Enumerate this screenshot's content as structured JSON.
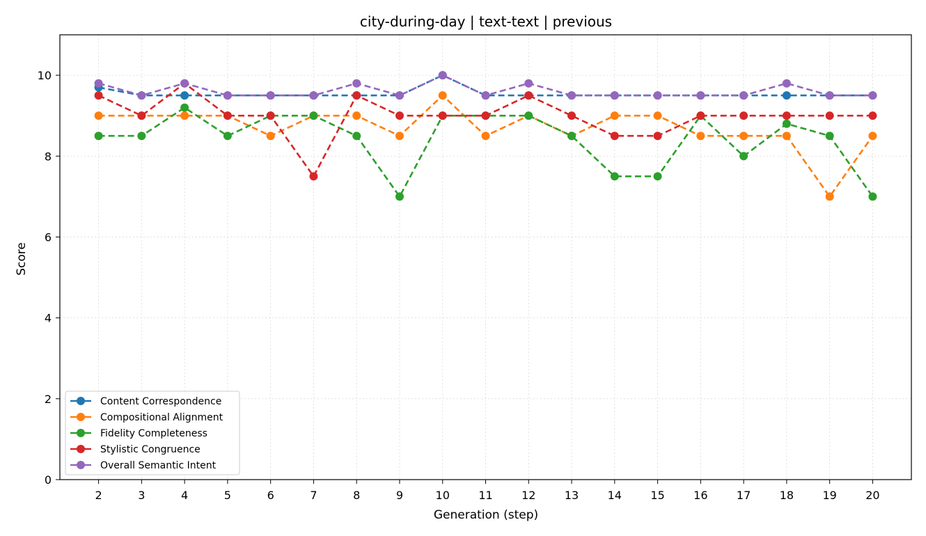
{
  "chart_data": {
    "type": "line",
    "title": "city-during-day | text-text | previous",
    "xlabel": "Generation (step)",
    "ylabel": "Score",
    "x": [
      2,
      3,
      4,
      5,
      6,
      7,
      8,
      9,
      10,
      11,
      12,
      13,
      14,
      15,
      16,
      17,
      18,
      19,
      20
    ],
    "xlim": [
      1.1,
      20.9
    ],
    "ylim": [
      0,
      11
    ],
    "yticks": [
      0,
      2,
      4,
      6,
      8,
      10
    ],
    "grid": true,
    "legend_position": "lower-left",
    "series": [
      {
        "name": "Content Correspondence",
        "color": "#1f77b4",
        "values": [
          9.7,
          9.5,
          9.5,
          9.5,
          9.5,
          9.5,
          9.5,
          9.5,
          10,
          9.5,
          9.5,
          9.5,
          9.5,
          9.5,
          9.5,
          9.5,
          9.5,
          9.5,
          9.5
        ]
      },
      {
        "name": "Compositional Alignment",
        "color": "#ff7f0e",
        "values": [
          9,
          9,
          9,
          9,
          8.5,
          9,
          9,
          8.5,
          9.5,
          8.5,
          9,
          8.5,
          9,
          9,
          8.5,
          8.5,
          8.5,
          7,
          8.5
        ]
      },
      {
        "name": "Fidelity Completeness",
        "color": "#2ca02c",
        "values": [
          8.5,
          8.5,
          9.2,
          8.5,
          9,
          9,
          8.5,
          7,
          9,
          9,
          9,
          8.5,
          7.5,
          7.5,
          9,
          8,
          8.8,
          8.5,
          7
        ]
      },
      {
        "name": "Stylistic Congruence",
        "color": "#d62728",
        "values": [
          9.5,
          9,
          9.8,
          9,
          9,
          7.5,
          9.5,
          9,
          9,
          9,
          9.5,
          9,
          8.5,
          8.5,
          9,
          9,
          9,
          9,
          9
        ]
      },
      {
        "name": "Overall Semantic Intent",
        "color": "#9467bd",
        "values": [
          9.8,
          9.5,
          9.8,
          9.5,
          9.5,
          9.5,
          9.8,
          9.5,
          10,
          9.5,
          9.8,
          9.5,
          9.5,
          9.5,
          9.5,
          9.5,
          9.8,
          9.5,
          9.5
        ]
      }
    ]
  }
}
